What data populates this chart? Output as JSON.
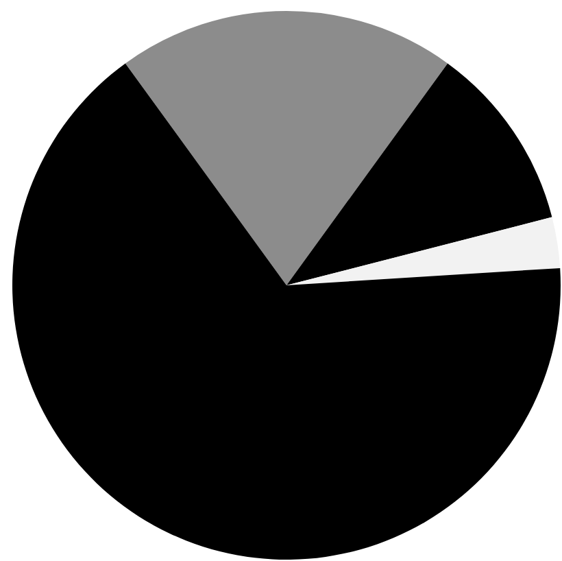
{
  "chart_data": {
    "type": "pie",
    "categories": [
      null,
      null,
      null,
      null
    ],
    "values": [
      20,
      11,
      3,
      66
    ],
    "colors": [
      "#8c8c8c",
      "#000000",
      "#f2f2f2",
      "#000000"
    ],
    "legend": false
  }
}
